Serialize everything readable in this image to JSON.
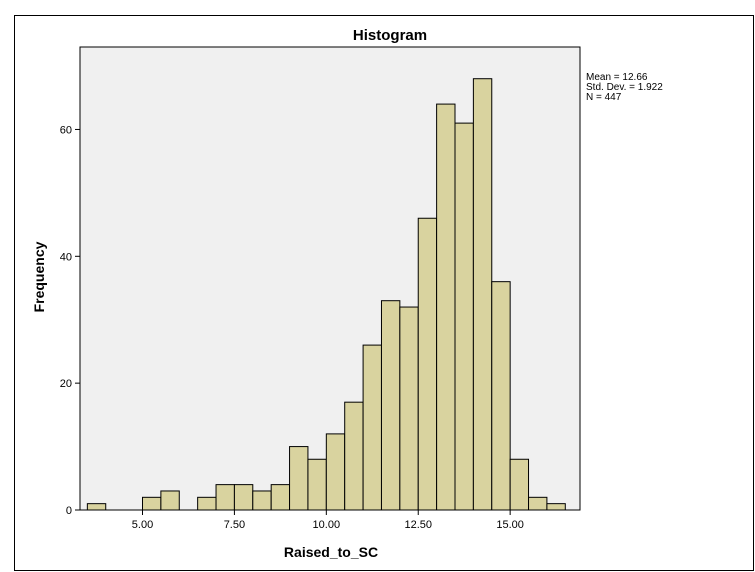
{
  "chart_data": {
    "type": "bar",
    "title": "Histogram",
    "xlabel": "Raised_to_SC",
    "ylabel": "Frequency",
    "xlim": [
      3.3,
      16.9
    ],
    "ylim": [
      0,
      73
    ],
    "bin_width": 0.5,
    "bins": [
      {
        "start": 3.5,
        "end": 4.0,
        "count": 1
      },
      {
        "start": 4.0,
        "end": 4.5,
        "count": 0
      },
      {
        "start": 4.5,
        "end": 5.0,
        "count": 0
      },
      {
        "start": 5.0,
        "end": 5.5,
        "count": 2
      },
      {
        "start": 5.5,
        "end": 6.0,
        "count": 3
      },
      {
        "start": 6.0,
        "end": 6.5,
        "count": 0
      },
      {
        "start": 6.5,
        "end": 7.0,
        "count": 2
      },
      {
        "start": 7.0,
        "end": 7.5,
        "count": 4
      },
      {
        "start": 7.5,
        "end": 8.0,
        "count": 4
      },
      {
        "start": 8.0,
        "end": 8.5,
        "count": 3
      },
      {
        "start": 8.5,
        "end": 9.0,
        "count": 4
      },
      {
        "start": 9.0,
        "end": 9.5,
        "count": 10
      },
      {
        "start": 9.5,
        "end": 10.0,
        "count": 8
      },
      {
        "start": 10.0,
        "end": 10.5,
        "count": 12
      },
      {
        "start": 10.5,
        "end": 11.0,
        "count": 17
      },
      {
        "start": 11.0,
        "end": 11.5,
        "count": 26
      },
      {
        "start": 11.5,
        "end": 12.0,
        "count": 33
      },
      {
        "start": 12.0,
        "end": 12.5,
        "count": 32
      },
      {
        "start": 12.5,
        "end": 13.0,
        "count": 46
      },
      {
        "start": 13.0,
        "end": 13.5,
        "count": 64
      },
      {
        "start": 13.5,
        "end": 14.0,
        "count": 61
      },
      {
        "start": 14.0,
        "end": 14.5,
        "count": 68
      },
      {
        "start": 14.5,
        "end": 15.0,
        "count": 36
      },
      {
        "start": 15.0,
        "end": 15.5,
        "count": 8
      },
      {
        "start": 15.5,
        "end": 16.0,
        "count": 2
      },
      {
        "start": 16.0,
        "end": 16.5,
        "count": 1
      }
    ],
    "x_ticks": [
      5.0,
      7.5,
      10.0,
      12.5,
      15.0
    ],
    "x_tick_labels": [
      "5.00",
      "7.50",
      "10.00",
      "12.50",
      "15.00"
    ],
    "y_ticks": [
      0,
      20,
      40,
      60
    ],
    "y_tick_labels": [
      "0",
      "20",
      "40",
      "60"
    ],
    "stats": [
      "Mean = 12.66",
      "Std. Dev. = 1.922",
      "N = 447"
    ],
    "grid": false,
    "colors": {
      "bar_fill": "#d9d39f",
      "bar_stroke": "#000000",
      "plot_bg": "#f0f0f0",
      "page_bg": "#ffffff"
    }
  }
}
